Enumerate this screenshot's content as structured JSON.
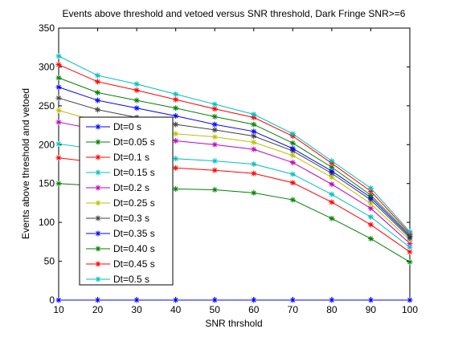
{
  "chart_data": {
    "type": "line",
    "title": "Events above threshold and vetoed versus SNR threshold, Dark Fringe SNR>=6",
    "xlabel": "SNR thrshold",
    "ylabel": "Events above threshold and vetoed",
    "x": [
      10,
      20,
      30,
      40,
      50,
      60,
      70,
      80,
      90,
      100
    ],
    "xlim": [
      10,
      100
    ],
    "ylim": [
      0,
      350
    ],
    "xticks": [
      10,
      20,
      30,
      40,
      50,
      60,
      70,
      80,
      90,
      100
    ],
    "yticks": [
      0,
      50,
      100,
      150,
      200,
      250,
      300,
      350
    ],
    "grid": false,
    "legend_position": "lower-left",
    "marker": "asterisk",
    "series": [
      {
        "name": "Dt=0 s",
        "color": "#0000ff",
        "values": [
          0,
          0,
          0,
          0,
          0,
          0,
          0,
          0,
          0,
          0
        ]
      },
      {
        "name": "Dt=0.05 s",
        "color": "#008000",
        "values": [
          150,
          147,
          144,
          143,
          142,
          138,
          129,
          105,
          79,
          49
        ]
      },
      {
        "name": "Dt=0.1 s",
        "color": "#ff0000",
        "values": [
          183,
          177,
          173,
          170,
          167,
          163,
          151,
          126,
          97,
          62
        ]
      },
      {
        "name": "Dt=0.15 s",
        "color": "#00bfbf",
        "values": [
          201,
          194,
          186,
          182,
          179,
          175,
          162,
          136,
          107,
          68
        ]
      },
      {
        "name": "Dt=0.2 s",
        "color": "#bf00bf",
        "values": [
          229,
          219,
          211,
          205,
          200,
          194,
          177,
          149,
          118,
          73
        ]
      },
      {
        "name": "Dt=0.25 s",
        "color": "#bfbf00",
        "values": [
          244,
          230,
          221,
          214,
          210,
          203,
          186,
          158,
          124,
          77
        ]
      },
      {
        "name": "Dt=0.3 s",
        "color": "#404040",
        "values": [
          260,
          245,
          235,
          226,
          219,
          211,
          192,
          163,
          129,
          80
        ]
      },
      {
        "name": "Dt=0.35 s",
        "color": "#0000ff",
        "values": [
          274,
          257,
          247,
          237,
          226,
          217,
          195,
          166,
          132,
          82
        ]
      },
      {
        "name": "Dt=0.40 s",
        "color": "#008000",
        "values": [
          286,
          267,
          257,
          247,
          236,
          226,
          202,
          171,
          135,
          84
        ]
      },
      {
        "name": "Dt=0.45 s",
        "color": "#ff0000",
        "values": [
          303,
          281,
          270,
          258,
          246,
          235,
          211,
          176,
          140,
          86
        ]
      },
      {
        "name": "Dt=0.5 s",
        "color": "#00bfbf",
        "values": [
          314,
          289,
          278,
          265,
          252,
          239,
          214,
          179,
          144,
          88
        ]
      }
    ]
  }
}
